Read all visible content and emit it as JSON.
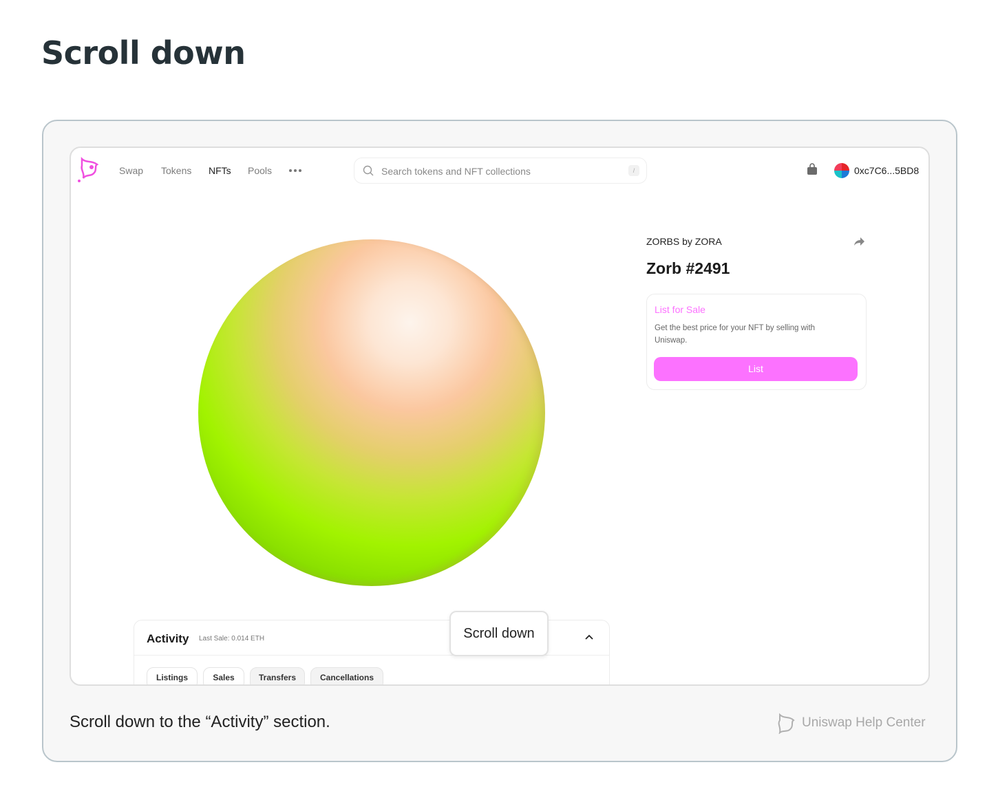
{
  "header": {
    "title": "Scroll down"
  },
  "screenshot": {
    "nav": {
      "links": [
        "Swap",
        "Tokens",
        "NFTs",
        "Pools"
      ],
      "search_placeholder": "Search tokens and NFT collections",
      "search_shortcut": "/",
      "account": "0xc7C6...5BD8"
    },
    "nft": {
      "collection": "ZORBS by ZORA",
      "name": "Zorb #2491",
      "sale_panel": {
        "title": "List for Sale",
        "description": "Get the best price for your NFT by selling with Uniswap.",
        "button": "List"
      }
    },
    "activity": {
      "title": "Activity",
      "last_sale": "Last Sale: 0.014 ETH",
      "tabs": [
        "Listings",
        "Sales",
        "Transfers",
        "Cancellations"
      ]
    },
    "tooltip": "Scroll down"
  },
  "caption": "Scroll down to the “Activity” section.",
  "footer": {
    "brand": "Uniswap Help Center"
  }
}
